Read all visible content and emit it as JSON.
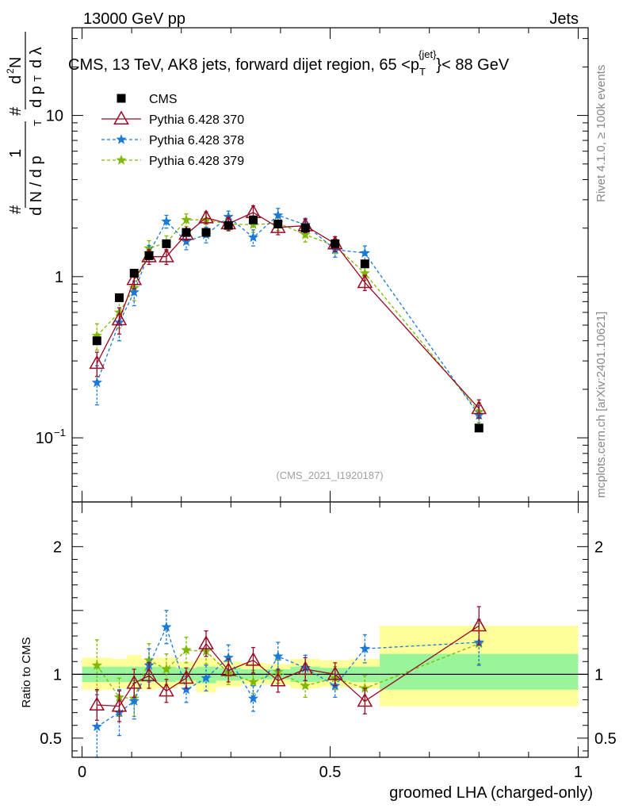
{
  "header": {
    "left": "13000 GeV pp",
    "right": "Jets"
  },
  "side_labels": {
    "right_top": "Rivet 4.1.0, ≥ 100k events",
    "right_bottom": "mcplots.cern.ch [arXiv:2401.10621]"
  },
  "chart_data": {
    "type": "scatter",
    "title": "CMS, 13 TeV, AK8 jets, forward dijet region, 65 <p_T^{jet}> < 88 GeV",
    "title_parts": {
      "pre": "CMS, 13 TeV, AK8 jets, forward dijet region, 65 <p",
      "sub": "T",
      "sup": "{jet}",
      "post": "}< 88 GeV"
    },
    "watermark": "(CMS_2021_I1920187)",
    "xlabel": "groomed LHA (charged-only)",
    "ylabel_main": "1/dN/dp_T  d²N/dp_T dλ",
    "ylabel_parts": {
      "frac1_num": "1",
      "frac1_den": "d N / d p",
      "frac2_num": "d",
      "frac2_numsup": "2",
      "frac2_numN": "N",
      "frac2_den": "d p",
      "frac2_den2": "d λ",
      "sub": "T",
      "hash": "#"
    },
    "ylabel_ratio": "Ratio to CMS",
    "xlim": [
      -0.02,
      1.02
    ],
    "ylim_main": [
      0.04,
      35
    ],
    "ylim_ratio": [
      0.35,
      2.35
    ],
    "x_ticks": [
      "0",
      "0.5",
      "1"
    ],
    "y_ticks_main": [
      {
        "v": 0.1,
        "label": "10",
        "sup": "−1"
      },
      {
        "v": 1,
        "label": "1",
        "sup": ""
      },
      {
        "v": 10,
        "label": "10",
        "sup": ""
      }
    ],
    "y_ticks_ratio": [
      {
        "v": 0.5,
        "label": "0.5"
      },
      {
        "v": 1,
        "label": "1"
      },
      {
        "v": 2,
        "label": "2"
      }
    ],
    "x": [
      0.03,
      0.075,
      0.105,
      0.135,
      0.17,
      0.21,
      0.25,
      0.295,
      0.345,
      0.395,
      0.45,
      0.51,
      0.57,
      0.8
    ],
    "bin_edges": [
      0.0,
      0.06,
      0.09,
      0.12,
      0.15,
      0.19,
      0.23,
      0.27,
      0.32,
      0.37,
      0.42,
      0.48,
      0.54,
      0.6,
      1.0
    ],
    "band_yellow": [
      [
        0.88,
        1.13
      ],
      [
        0.89,
        1.12
      ],
      [
        0.89,
        1.15
      ],
      [
        0.88,
        1.12
      ],
      [
        0.89,
        1.13
      ],
      [
        0.91,
        1.1
      ],
      [
        0.86,
        1.13
      ],
      [
        0.9,
        1.1
      ],
      [
        0.92,
        1.09
      ],
      [
        0.92,
        1.08
      ],
      [
        0.89,
        1.12
      ],
      [
        0.9,
        1.11
      ],
      [
        0.89,
        1.12
      ],
      [
        0.75,
        1.38
      ]
    ],
    "band_green": [
      [
        0.94,
        1.06
      ],
      [
        0.94,
        1.06
      ],
      [
        0.94,
        1.06
      ],
      [
        0.94,
        1.06
      ],
      [
        0.94,
        1.06
      ],
      [
        0.95,
        1.05
      ],
      [
        0.93,
        1.06
      ],
      [
        0.95,
        1.05
      ],
      [
        0.96,
        1.04
      ],
      [
        0.96,
        1.04
      ],
      [
        0.94,
        1.06
      ],
      [
        0.95,
        1.05
      ],
      [
        0.94,
        1.06
      ],
      [
        0.88,
        1.16
      ]
    ],
    "series": [
      {
        "name": "CMS",
        "color": "#000000",
        "marker": "square",
        "line": "none",
        "values": [
          0.4,
          0.74,
          1.05,
          1.35,
          1.6,
          1.88,
          1.88,
          2.08,
          2.25,
          2.12,
          2.0,
          1.6,
          1.2,
          0.115
        ],
        "err": [
          0.02,
          0.03,
          0.04,
          0.05,
          0.05,
          0.05,
          0.05,
          0.05,
          0.05,
          0.05,
          0.05,
          0.05,
          0.05,
          0.004
        ]
      },
      {
        "name": "Pythia 6.428 370",
        "color": "#9b0a24",
        "marker": "triangle",
        "line": "solid",
        "values": [
          0.29,
          0.54,
          0.96,
          1.33,
          1.33,
          1.83,
          2.32,
          2.13,
          2.5,
          2.02,
          2.07,
          1.6,
          0.92,
          0.152
        ],
        "err": [
          0.05,
          0.1,
          0.12,
          0.14,
          0.14,
          0.15,
          0.2,
          0.2,
          0.25,
          0.2,
          0.2,
          0.17,
          0.1,
          0.02
        ],
        "ratio": [
          0.76,
          0.75,
          0.93,
          0.99,
          0.87,
          0.97,
          1.24,
          1.03,
          1.11,
          0.95,
          1.04,
          1.0,
          0.79,
          1.38
        ],
        "ratio_err": [
          0.12,
          0.12,
          0.11,
          0.1,
          0.09,
          0.08,
          0.1,
          0.09,
          0.1,
          0.09,
          0.09,
          0.09,
          0.1,
          0.15
        ]
      },
      {
        "name": "Pythia 6.428 378",
        "color": "#1a7ad8",
        "marker": "star",
        "line": "dashed",
        "values": [
          0.22,
          0.52,
          0.8,
          1.4,
          2.2,
          1.65,
          1.82,
          2.35,
          1.75,
          2.4,
          2.1,
          1.47,
          1.4,
          0.138
        ],
        "err": [
          0.06,
          0.12,
          0.14,
          0.16,
          0.2,
          0.18,
          0.2,
          0.2,
          0.2,
          0.25,
          0.2,
          0.15,
          0.15,
          0.02
        ],
        "ratio": [
          0.59,
          0.7,
          0.79,
          1.07,
          1.37,
          0.88,
          0.97,
          1.13,
          0.81,
          1.14,
          1.05,
          0.91,
          1.2,
          1.25
        ],
        "ratio_err": [
          0.25,
          0.18,
          0.14,
          0.13,
          0.13,
          0.1,
          0.1,
          0.1,
          0.1,
          0.11,
          0.1,
          0.09,
          0.11,
          0.18
        ]
      },
      {
        "name": "Pythia 6.428 379",
        "color": "#7fb800",
        "marker": "star",
        "line": "dashed",
        "values": [
          0.43,
          0.6,
          0.85,
          1.5,
          1.62,
          2.25,
          2.25,
          2.12,
          2.1,
          2.15,
          1.82,
          1.55,
          1.05,
          0.145
        ],
        "err": [
          0.08,
          0.12,
          0.14,
          0.17,
          0.17,
          0.2,
          0.22,
          0.2,
          0.22,
          0.22,
          0.18,
          0.16,
          0.1,
          0.02
        ],
        "ratio": [
          1.07,
          0.82,
          0.81,
          1.11,
          1.04,
          1.19,
          1.18,
          1.01,
          0.94,
          1.02,
          0.91,
          0.97,
          0.89,
          1.24
        ],
        "ratio_err": [
          0.2,
          0.15,
          0.14,
          0.13,
          0.12,
          0.1,
          0.1,
          0.09,
          0.09,
          0.09,
          0.09,
          0.09,
          0.1,
          0.16
        ]
      }
    ]
  }
}
